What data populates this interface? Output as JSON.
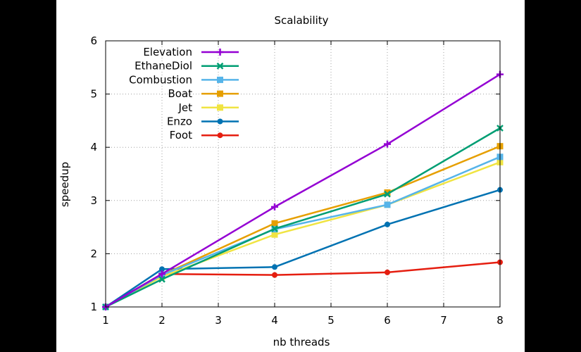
{
  "chart_data": {
    "type": "line",
    "title": "Scalability",
    "xlabel": "nb threads",
    "ylabel": "speedup",
    "xlim": [
      1,
      8
    ],
    "ylim": [
      1,
      6
    ],
    "xticks": [
      "1",
      "2",
      "3",
      "4",
      "5",
      "6",
      "7",
      "8"
    ],
    "yticks": [
      "1",
      "2",
      "3",
      "4",
      "5",
      "6"
    ],
    "grid": true,
    "legend_position": "top-left",
    "x": [
      1,
      2,
      4,
      6,
      8
    ],
    "series": [
      {
        "name": "Elevation",
        "color": "#9400d3",
        "marker": "plus",
        "values": [
          1.0,
          1.62,
          2.88,
          4.06,
          5.37
        ]
      },
      {
        "name": "EthaneDiol",
        "color": "#009e73",
        "marker": "x",
        "values": [
          1.0,
          1.52,
          2.47,
          3.12,
          4.36
        ]
      },
      {
        "name": "Combustion",
        "color": "#56b4e9",
        "marker": "square",
        "values": [
          1.0,
          1.6,
          2.46,
          2.92,
          3.82
        ]
      },
      {
        "name": "Boat",
        "color": "#e69f00",
        "marker": "square",
        "values": [
          1.0,
          1.6,
          2.57,
          3.15,
          4.02
        ]
      },
      {
        "name": "Jet",
        "color": "#f0e442",
        "marker": "square",
        "values": [
          1.0,
          1.57,
          2.36,
          2.92,
          3.72
        ]
      },
      {
        "name": "Enzo",
        "color": "#0072b2",
        "marker": "circle",
        "values": [
          1.0,
          1.71,
          1.75,
          2.55,
          3.2
        ]
      },
      {
        "name": "Foot",
        "color": "#e51e10",
        "marker": "circle",
        "values": [
          1.0,
          1.62,
          1.6,
          1.65,
          1.84
        ]
      }
    ]
  }
}
